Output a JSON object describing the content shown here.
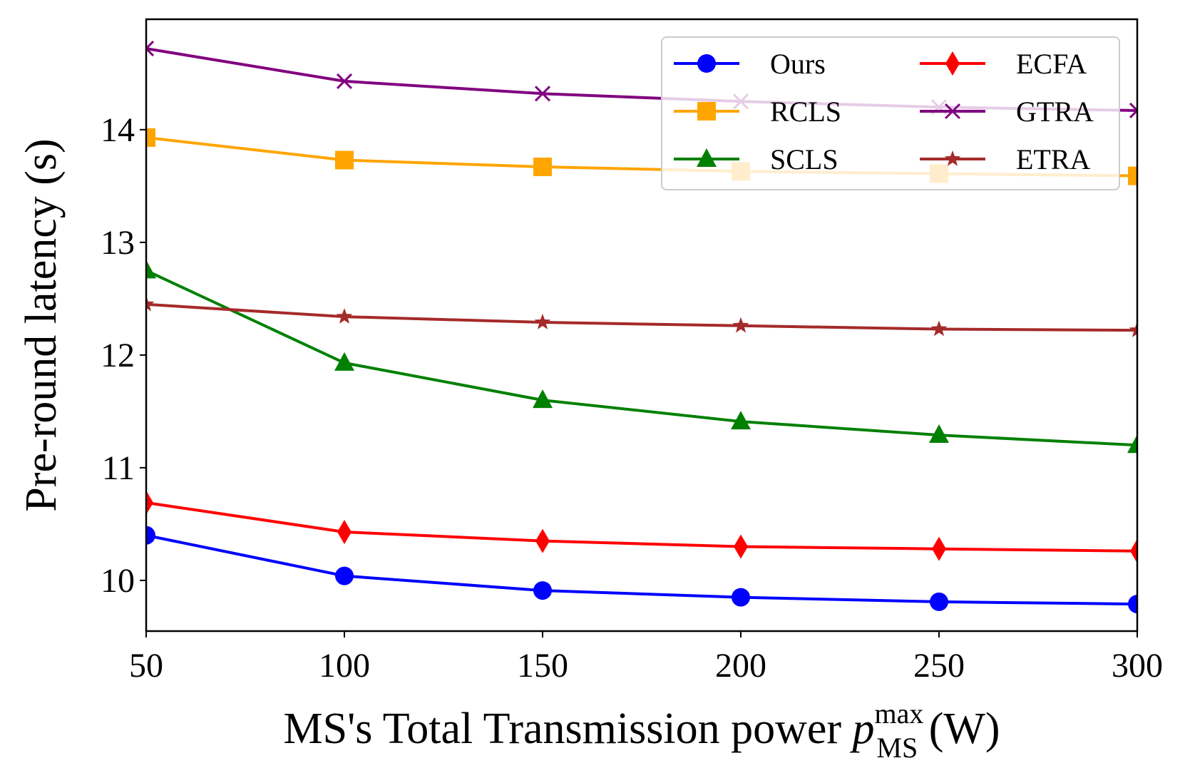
{
  "chart_data": {
    "type": "line",
    "title": "",
    "xlabel": {
      "prefix": "MS's Total Transmission power ",
      "symbol": "p",
      "superscript": "max",
      "subscript": "MS",
      "suffix": " (W)"
    },
    "ylabel": "Pre-round latency (s)",
    "x": [
      50,
      100,
      150,
      200,
      250,
      300
    ],
    "xlim": [
      50,
      300
    ],
    "ylim": [
      9.55,
      14.98
    ],
    "xticks": [
      "50",
      "100",
      "150",
      "200",
      "250",
      "300"
    ],
    "yticks": [
      {
        "value": 10,
        "label": "10"
      },
      {
        "value": 11,
        "label": "11"
      },
      {
        "value": 12,
        "label": "12"
      },
      {
        "value": 13,
        "label": "13"
      },
      {
        "value": 14,
        "label": "14"
      }
    ],
    "grid": false,
    "legend_position": "top-right",
    "series": [
      {
        "name": "Ours",
        "color": "#0000ff",
        "marker": "circle",
        "values": [
          10.4,
          10.04,
          9.91,
          9.85,
          9.81,
          9.79
        ]
      },
      {
        "name": "RCLS",
        "color": "#ffa500",
        "marker": "square",
        "values": [
          13.93,
          13.73,
          13.67,
          13.63,
          13.61,
          13.59
        ]
      },
      {
        "name": "SCLS",
        "color": "#008000",
        "marker": "triangle",
        "values": [
          12.75,
          11.93,
          11.6,
          11.41,
          11.29,
          11.2
        ]
      },
      {
        "name": "ECFA",
        "color": "#ff0000",
        "marker": "diamond",
        "values": [
          10.69,
          10.43,
          10.35,
          10.3,
          10.28,
          10.26
        ]
      },
      {
        "name": "GTRA",
        "color": "#800080",
        "marker": "x",
        "values": [
          14.72,
          14.43,
          14.32,
          14.25,
          14.2,
          14.17
        ]
      },
      {
        "name": "ETRA",
        "color": "#a52a2a",
        "marker": "star",
        "values": [
          12.45,
          12.34,
          12.29,
          12.26,
          12.23,
          12.22
        ]
      }
    ]
  }
}
